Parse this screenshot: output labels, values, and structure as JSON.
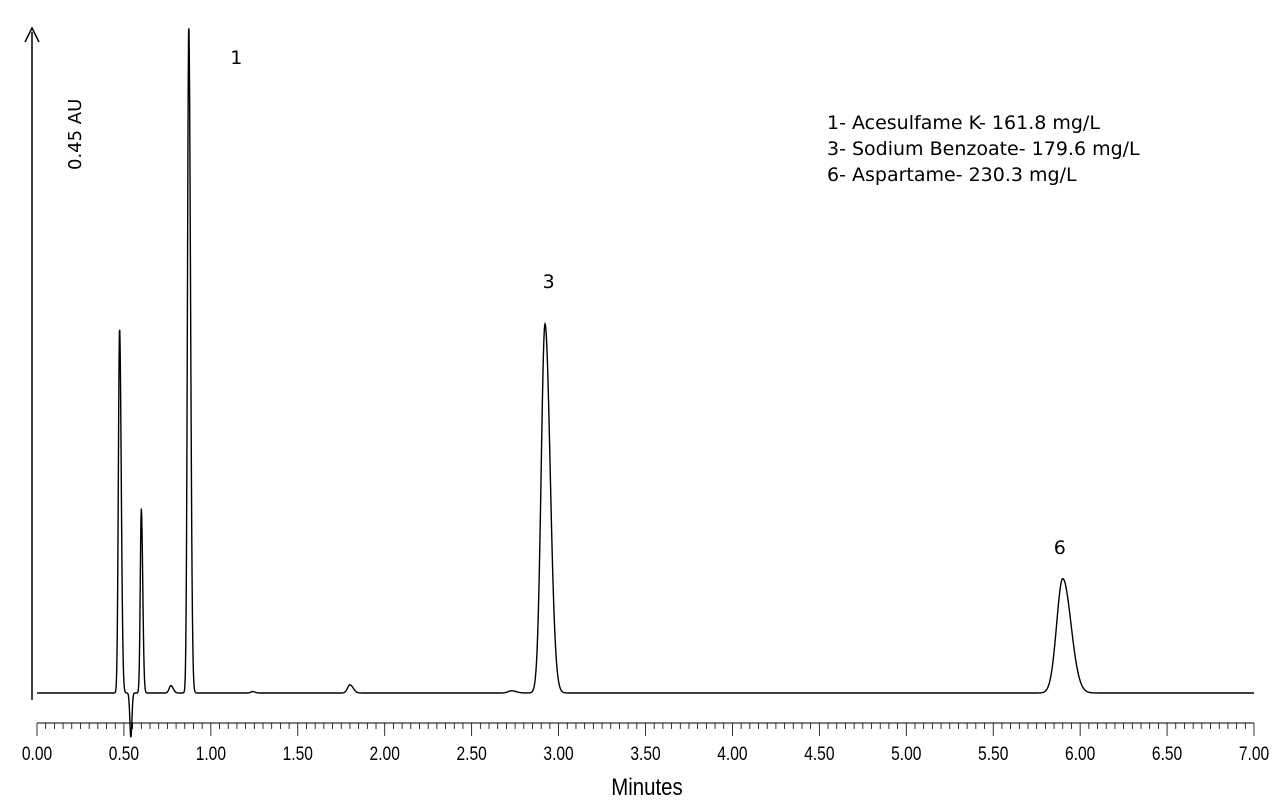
{
  "chart_data": {
    "type": "line",
    "title": "",
    "xlabel": "Minutes",
    "ylabel": "0.45 AU",
    "xlim": [
      0.0,
      7.0
    ],
    "grid": false,
    "x_ticks": [
      "0.00",
      "0.50",
      "1.00",
      "1.50",
      "2.00",
      "2.50",
      "3.00",
      "3.50",
      "4.00",
      "4.50",
      "5.00",
      "5.50",
      "6.00",
      "6.50",
      "7.00"
    ],
    "peak_labels": [
      {
        "text": "1",
        "x": 0.87
      },
      {
        "text": "3",
        "x": 2.92
      },
      {
        "text": "6",
        "x": 5.9
      }
    ],
    "legend_position": "top-right",
    "legend": [
      "1- Acesulfame K- 161.8 mg/L",
      "3- Sodium Benzoate- 179.6 mg/L",
      "6- Aspartame- 230.3 mg/L"
    ],
    "series": [
      {
        "baseline": 0.0,
        "peaks": [
          {
            "x": 0.475,
            "height": 0.495,
            "sigma": 0.007
          },
          {
            "x": 0.6,
            "height": 0.25,
            "sigma": 0.006
          },
          {
            "x": 0.77,
            "height": 0.01,
            "sigma": 0.01
          },
          {
            "x": 0.873,
            "height": 0.905,
            "sigma": 0.0075
          },
          {
            "x": 1.24,
            "height": 0.002,
            "sigma": 0.01
          },
          {
            "x": 1.8,
            "height": 0.011,
            "sigma": 0.014
          },
          {
            "x": 2.73,
            "height": 0.003,
            "sigma": 0.02
          },
          {
            "x": 2.922,
            "height": 0.5,
            "sigma": 0.022
          },
          {
            "x": 5.9,
            "height": 0.155,
            "sigma": 0.035
          }
        ],
        "dips": [
          {
            "x": 0.54,
            "depth": -0.06,
            "sigma": 0.006
          }
        ]
      }
    ]
  }
}
